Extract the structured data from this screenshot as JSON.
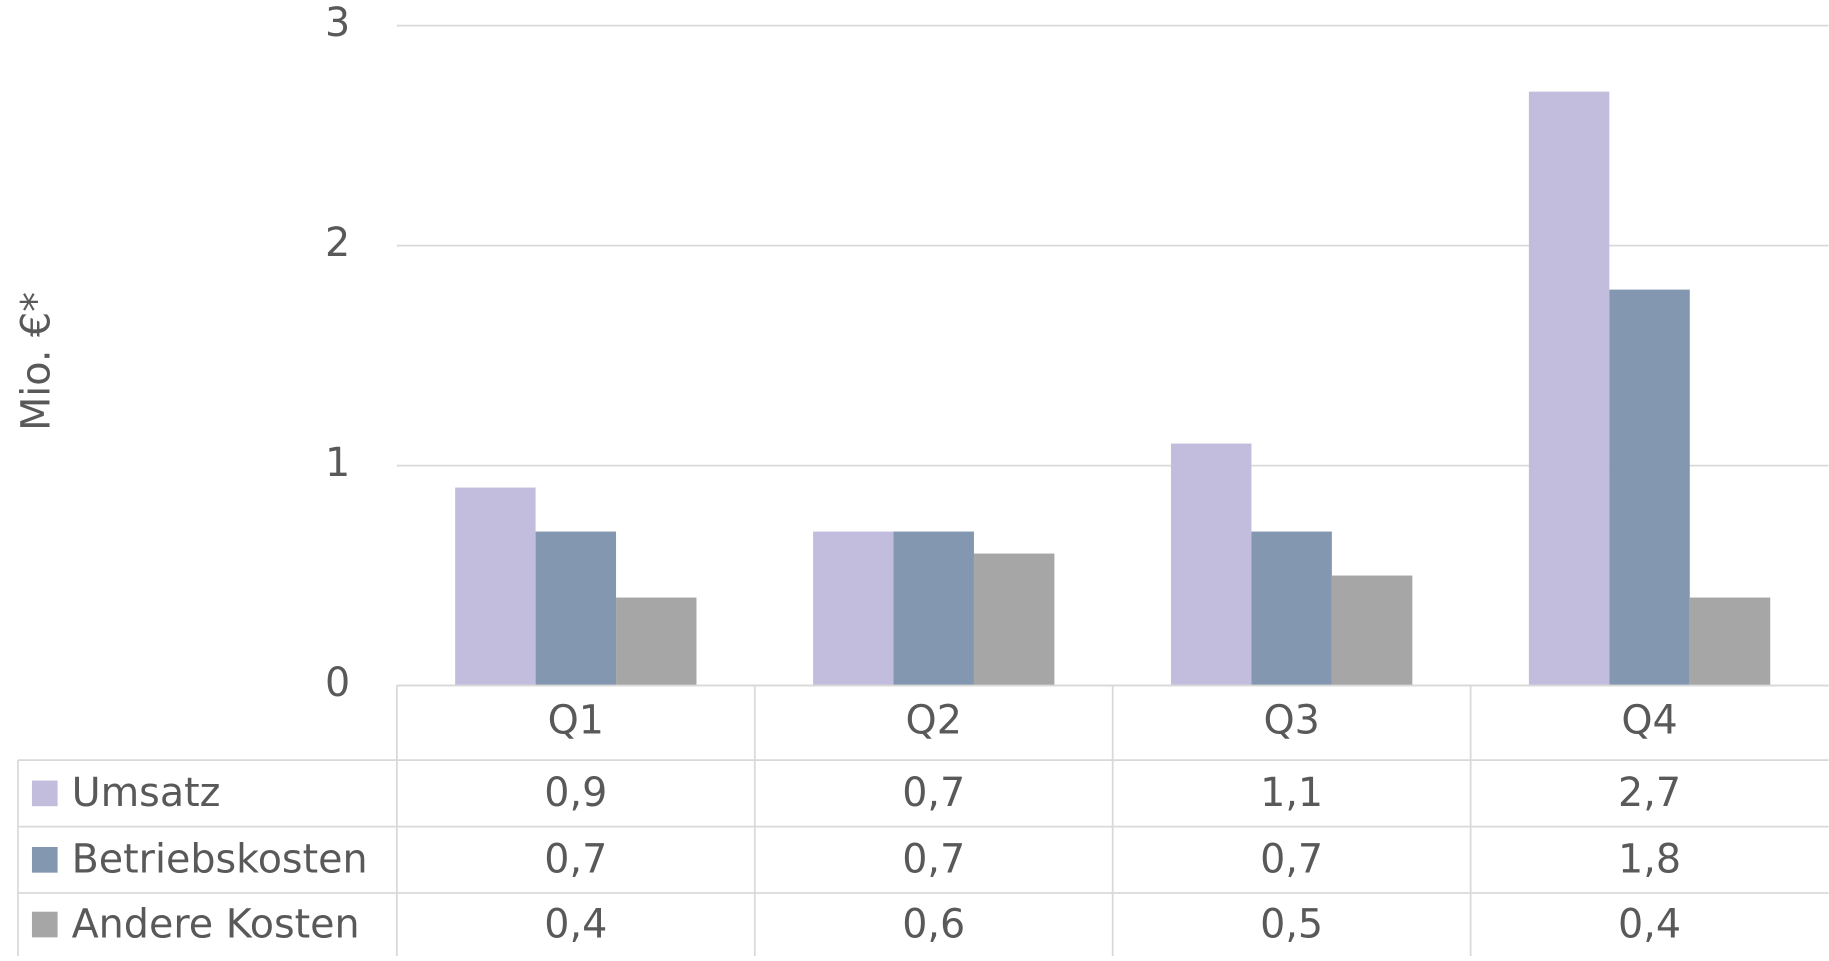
{
  "chart_data": {
    "type": "bar",
    "y_label": "Mio. €*",
    "categories": [
      "Q1",
      "Q2",
      "Q3",
      "Q4"
    ],
    "series": [
      {
        "name": "Umsatz",
        "color": "#c3bddd",
        "values": [
          0.9,
          0.7,
          1.1,
          2.7
        ],
        "value_labels": [
          "0,9",
          "0,7",
          "1,1",
          "2,7"
        ]
      },
      {
        "name": "Betriebskosten",
        "color": "#8497b0",
        "values": [
          0.7,
          0.7,
          0.7,
          1.8
        ],
        "value_labels": [
          "0,7",
          "0,7",
          "0,7",
          "1,8"
        ]
      },
      {
        "name": "Andere Kosten",
        "color": "#a6a6a6",
        "values": [
          0.4,
          0.6,
          0.5,
          0.4
        ],
        "value_labels": [
          "0,4",
          "0,6",
          "0,5",
          "0,4"
        ]
      }
    ],
    "ylim": [
      0,
      3
    ],
    "yticks": [
      0,
      1,
      2,
      3
    ],
    "grid": true
  }
}
